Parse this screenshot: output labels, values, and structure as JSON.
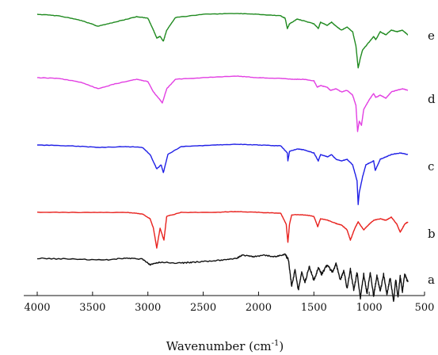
{
  "chart_data": {
    "type": "line",
    "title": "",
    "xlabel": "Wavenumber (cm",
    "xlabel_sup": "-1",
    "xlabel_close": ")",
    "ylabel": "",
    "xlim": [
      4000,
      500
    ],
    "x_reversed": true,
    "xticks": [
      4000,
      3500,
      3000,
      2500,
      2000,
      1500,
      1000,
      500
    ],
    "grid": false,
    "legend": "none",
    "series": [
      {
        "name": "a",
        "color": "#111111",
        "baseline": 326,
        "points": [
          [
            4000,
            0
          ],
          [
            3700,
            1
          ],
          [
            3400,
            2
          ],
          [
            3200,
            0
          ],
          [
            3050,
            1
          ],
          [
            2980,
            8
          ],
          [
            2900,
            5
          ],
          [
            2700,
            6
          ],
          [
            2600,
            5
          ],
          [
            2400,
            3
          ],
          [
            2300,
            2
          ],
          [
            2200,
            0
          ],
          [
            2150,
            -4
          ],
          [
            2050,
            -2
          ],
          [
            1950,
            -4
          ],
          [
            1850,
            -2
          ],
          [
            1760,
            -5
          ],
          [
            1730,
            2
          ],
          [
            1700,
            35
          ],
          [
            1670,
            15
          ],
          [
            1640,
            40
          ],
          [
            1610,
            18
          ],
          [
            1580,
            30
          ],
          [
            1540,
            10
          ],
          [
            1500,
            28
          ],
          [
            1460,
            12
          ],
          [
            1430,
            20
          ],
          [
            1380,
            8
          ],
          [
            1330,
            18
          ],
          [
            1300,
            6
          ],
          [
            1260,
            28
          ],
          [
            1230,
            15
          ],
          [
            1200,
            38
          ],
          [
            1170,
            14
          ],
          [
            1140,
            40
          ],
          [
            1110,
            18
          ],
          [
            1080,
            50
          ],
          [
            1050,
            20
          ],
          [
            1020,
            45
          ],
          [
            990,
            18
          ],
          [
            960,
            48
          ],
          [
            930,
            22
          ],
          [
            900,
            42
          ],
          [
            870,
            20
          ],
          [
            840,
            46
          ],
          [
            810,
            24
          ],
          [
            780,
            55
          ],
          [
            760,
            26
          ],
          [
            740,
            50
          ],
          [
            720,
            22
          ],
          [
            700,
            42
          ],
          [
            680,
            20
          ],
          [
            650,
            30
          ]
        ]
      },
      {
        "name": "b",
        "color": "#e8211d",
        "baseline": 268,
        "points": [
          [
            4000,
            0
          ],
          [
            3600,
            0
          ],
          [
            3200,
            0
          ],
          [
            3050,
            2
          ],
          [
            2980,
            8
          ],
          [
            2950,
            20
          ],
          [
            2920,
            45
          ],
          [
            2890,
            20
          ],
          [
            2855,
            35
          ],
          [
            2830,
            5
          ],
          [
            2700,
            0
          ],
          [
            2400,
            0
          ],
          [
            2200,
            -1
          ],
          [
            2000,
            0
          ],
          [
            1800,
            1
          ],
          [
            1750,
            15
          ],
          [
            1735,
            38
          ],
          [
            1720,
            15
          ],
          [
            1700,
            3
          ],
          [
            1600,
            3
          ],
          [
            1500,
            5
          ],
          [
            1465,
            18
          ],
          [
            1440,
            8
          ],
          [
            1375,
            10
          ],
          [
            1300,
            14
          ],
          [
            1250,
            16
          ],
          [
            1200,
            22
          ],
          [
            1170,
            35
          ],
          [
            1130,
            20
          ],
          [
            1100,
            12
          ],
          [
            1050,
            22
          ],
          [
            1000,
            15
          ],
          [
            960,
            10
          ],
          [
            900,
            8
          ],
          [
            850,
            10
          ],
          [
            800,
            6
          ],
          [
            750,
            15
          ],
          [
            720,
            25
          ],
          [
            700,
            20
          ],
          [
            680,
            15
          ],
          [
            650,
            12
          ]
        ]
      },
      {
        "name": "c",
        "color": "#1f1fe6",
        "baseline": 183,
        "points": [
          [
            4000,
            0
          ],
          [
            3700,
            1
          ],
          [
            3450,
            3
          ],
          [
            3200,
            2
          ],
          [
            3050,
            3
          ],
          [
            2980,
            12
          ],
          [
            2920,
            30
          ],
          [
            2880,
            25
          ],
          [
            2860,
            35
          ],
          [
            2820,
            12
          ],
          [
            2700,
            2
          ],
          [
            2400,
            0
          ],
          [
            2200,
            -1
          ],
          [
            2000,
            0
          ],
          [
            1800,
            1
          ],
          [
            1740,
            10
          ],
          [
            1735,
            20
          ],
          [
            1720,
            8
          ],
          [
            1650,
            5
          ],
          [
            1590,
            6
          ],
          [
            1500,
            10
          ],
          [
            1460,
            20
          ],
          [
            1440,
            12
          ],
          [
            1375,
            15
          ],
          [
            1340,
            12
          ],
          [
            1300,
            18
          ],
          [
            1250,
            20
          ],
          [
            1200,
            18
          ],
          [
            1150,
            25
          ],
          [
            1110,
            45
          ],
          [
            1100,
            75
          ],
          [
            1090,
            60
          ],
          [
            1060,
            40
          ],
          [
            1030,
            25
          ],
          [
            960,
            20
          ],
          [
            945,
            32
          ],
          [
            900,
            18
          ],
          [
            850,
            15
          ],
          [
            800,
            12
          ],
          [
            720,
            10
          ],
          [
            650,
            12
          ]
        ]
      },
      {
        "name": "d",
        "color": "#e23fe2",
        "baseline": 98,
        "points": [
          [
            4000,
            0
          ],
          [
            3800,
            1
          ],
          [
            3600,
            6
          ],
          [
            3450,
            14
          ],
          [
            3300,
            8
          ],
          [
            3100,
            2
          ],
          [
            3000,
            5
          ],
          [
            2950,
            18
          ],
          [
            2890,
            28
          ],
          [
            2870,
            32
          ],
          [
            2830,
            14
          ],
          [
            2750,
            2
          ],
          [
            2500,
            0
          ],
          [
            2200,
            -2
          ],
          [
            2000,
            0
          ],
          [
            1800,
            1
          ],
          [
            1700,
            2
          ],
          [
            1600,
            2
          ],
          [
            1500,
            4
          ],
          [
            1470,
            12
          ],
          [
            1440,
            10
          ],
          [
            1380,
            12
          ],
          [
            1350,
            16
          ],
          [
            1300,
            14
          ],
          [
            1250,
            18
          ],
          [
            1200,
            16
          ],
          [
            1150,
            22
          ],
          [
            1120,
            35
          ],
          [
            1105,
            68
          ],
          [
            1090,
            55
          ],
          [
            1070,
            60
          ],
          [
            1050,
            40
          ],
          [
            1000,
            28
          ],
          [
            960,
            20
          ],
          [
            940,
            25
          ],
          [
            900,
            22
          ],
          [
            850,
            26
          ],
          [
            800,
            18
          ],
          [
            750,
            16
          ],
          [
            700,
            14
          ],
          [
            650,
            16
          ]
        ]
      },
      {
        "name": "e",
        "color": "#1f8a1f",
        "baseline": 18,
        "points": [
          [
            4000,
            0
          ],
          [
            3800,
            2
          ],
          [
            3600,
            8
          ],
          [
            3450,
            15
          ],
          [
            3300,
            10
          ],
          [
            3100,
            3
          ],
          [
            3000,
            5
          ],
          [
            2950,
            20
          ],
          [
            2920,
            30
          ],
          [
            2890,
            28
          ],
          [
            2860,
            34
          ],
          [
            2830,
            20
          ],
          [
            2750,
            4
          ],
          [
            2500,
            0
          ],
          [
            2200,
            -1
          ],
          [
            2000,
            0
          ],
          [
            1800,
            2
          ],
          [
            1760,
            5
          ],
          [
            1740,
            18
          ],
          [
            1720,
            12
          ],
          [
            1650,
            6
          ],
          [
            1600,
            8
          ],
          [
            1500,
            12
          ],
          [
            1460,
            18
          ],
          [
            1440,
            10
          ],
          [
            1380,
            14
          ],
          [
            1340,
            10
          ],
          [
            1300,
            15
          ],
          [
            1250,
            20
          ],
          [
            1200,
            16
          ],
          [
            1150,
            22
          ],
          [
            1120,
            40
          ],
          [
            1100,
            68
          ],
          [
            1080,
            55
          ],
          [
            1060,
            45
          ],
          [
            1000,
            35
          ],
          [
            960,
            28
          ],
          [
            940,
            32
          ],
          [
            900,
            22
          ],
          [
            850,
            26
          ],
          [
            800,
            20
          ],
          [
            750,
            22
          ],
          [
            700,
            20
          ],
          [
            650,
            26
          ]
        ]
      }
    ]
  }
}
